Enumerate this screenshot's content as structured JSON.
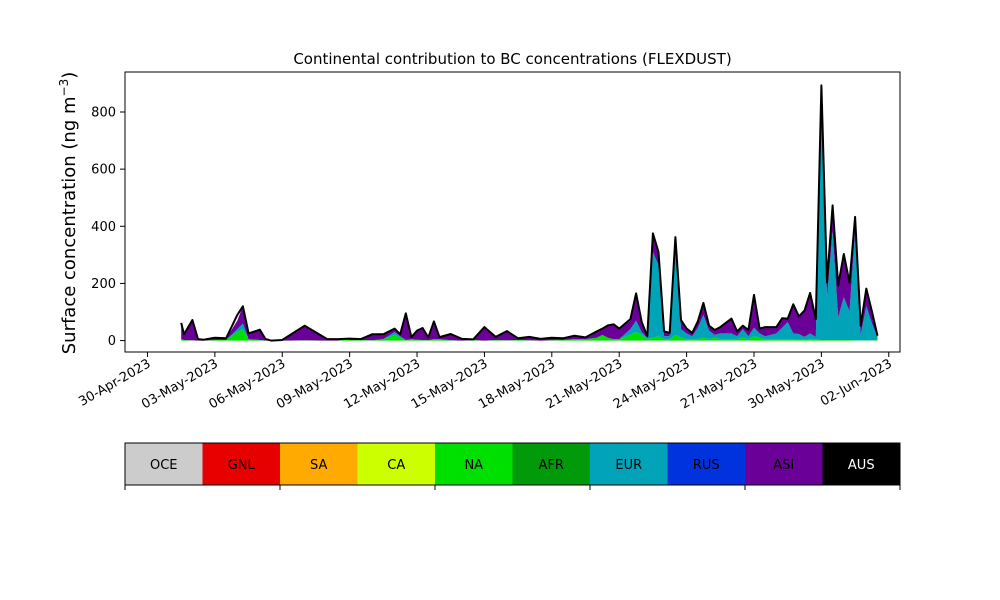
{
  "chart_data": {
    "type": "area",
    "stacked": true,
    "title": "Continental contribution to BC concentrations (FLEXDUST)",
    "ylabel": "Surface concentration (ng m",
    "ylabel_unit_sup": "−3",
    "ylabel_close": ")",
    "xlabel": "",
    "ylim": [
      -40,
      940
    ],
    "y_ticks": [
      0,
      200,
      400,
      600,
      800
    ],
    "x_range": [
      "2023-04-29",
      "2023-06-02 12:00"
    ],
    "x_ticks": [
      "30-Apr-2023",
      "03-May-2023",
      "06-May-2023",
      "09-May-2023",
      "12-May-2023",
      "15-May-2023",
      "18-May-2023",
      "21-May-2023",
      "24-May-2023",
      "27-May-2023",
      "30-May-2023",
      "02-Jun-2023"
    ],
    "grid": false,
    "legend": {
      "placement": "bottom colorbar",
      "entries": [
        {
          "name": "OCE",
          "color": "#cccccc",
          "text_color": "#000000"
        },
        {
          "name": "GNL",
          "color": "#e60000",
          "text_color": "#000000"
        },
        {
          "name": "SA",
          "color": "#ffaa00",
          "text_color": "#000000"
        },
        {
          "name": "CA",
          "color": "#ccff00",
          "text_color": "#000000"
        },
        {
          "name": "NA",
          "color": "#00e000",
          "text_color": "#000000"
        },
        {
          "name": "AFR",
          "color": "#009a0a",
          "text_color": "#000000"
        },
        {
          "name": "EUR",
          "color": "#00a3b8",
          "text_color": "#000000"
        },
        {
          "name": "RUS",
          "color": "#0033dd",
          "text_color": "#000000"
        },
        {
          "name": "ASI",
          "color": "#6a0098",
          "text_color": "#000000"
        },
        {
          "name": "AUS",
          "color": "#000000",
          "text_color": "#ffffff"
        }
      ]
    },
    "x": [
      "2023-05-01 12:00",
      "2023-05-01 15:00",
      "2023-05-02 00:00",
      "2023-05-02 06:00",
      "2023-05-02 12:00",
      "2023-05-03 00:00",
      "2023-05-03 12:00",
      "2023-05-04 00:00",
      "2023-05-04 06:00",
      "2023-05-04 12:00",
      "2023-05-05 00:00",
      "2023-05-05 06:00",
      "2023-05-05 12:00",
      "2023-05-06 00:00",
      "2023-05-07 00:00",
      "2023-05-08 00:00",
      "2023-05-08 12:00",
      "2023-05-08 18:00",
      "2023-05-09 00:00",
      "2023-05-09 12:00",
      "2023-05-10 00:00",
      "2023-05-10 12:00",
      "2023-05-11 00:00",
      "2023-05-11 06:00",
      "2023-05-11 12:00",
      "2023-05-11 18:00",
      "2023-05-12 00:00",
      "2023-05-12 06:00",
      "2023-05-12 12:00",
      "2023-05-12 18:00",
      "2023-05-13 00:00",
      "2023-05-13 12:00",
      "2023-05-14 00:00",
      "2023-05-14 12:00",
      "2023-05-15 00:00",
      "2023-05-15 12:00",
      "2023-05-16 00:00",
      "2023-05-16 12:00",
      "2023-05-17 00:00",
      "2023-05-17 12:00",
      "2023-05-18 00:00",
      "2023-05-18 12:00",
      "2023-05-19 00:00",
      "2023-05-19 12:00",
      "2023-05-20 00:00",
      "2023-05-20 06:00",
      "2023-05-20 12:00",
      "2023-05-20 18:00",
      "2023-05-21 00:00",
      "2023-05-21 12:00",
      "2023-05-21 18:00",
      "2023-05-22 00:00",
      "2023-05-22 06:00",
      "2023-05-22 12:00",
      "2023-05-22 18:00",
      "2023-05-23 00:00",
      "2023-05-23 06:00",
      "2023-05-23 12:00",
      "2023-05-23 18:00",
      "2023-05-24 00:00",
      "2023-05-24 06:00",
      "2023-05-24 12:00",
      "2023-05-24 18:00",
      "2023-05-25 00:00",
      "2023-05-25 06:00",
      "2023-05-25 12:00",
      "2023-05-26 00:00",
      "2023-05-26 06:00",
      "2023-05-26 12:00",
      "2023-05-26 18:00",
      "2023-05-27 00:00",
      "2023-05-27 06:00",
      "2023-05-27 12:00",
      "2023-05-28 00:00",
      "2023-05-28 06:00",
      "2023-05-28 12:00",
      "2023-05-28 18:00",
      "2023-05-29 00:00",
      "2023-05-29 06:00",
      "2023-05-29 12:00",
      "2023-05-29 18:00",
      "2023-05-30 00:00",
      "2023-05-30 06:00",
      "2023-05-30 12:00",
      "2023-05-30 18:00",
      "2023-05-31 00:00",
      "2023-05-31 06:00",
      "2023-05-31 12:00",
      "2023-05-31 18:00",
      "2023-06-01 00:00",
      "2023-06-01 06:00",
      "2023-06-01 12:00"
    ],
    "series": [
      {
        "name": "NA",
        "values": [
          5,
          2,
          1,
          0,
          0,
          2,
          2,
          30,
          40,
          5,
          2,
          0,
          0,
          0,
          1,
          0,
          0,
          5,
          2,
          2,
          1,
          5,
          20,
          10,
          2,
          5,
          3,
          2,
          1,
          5,
          5,
          1,
          0,
          2,
          0,
          2,
          1,
          2,
          1,
          0,
          1,
          2,
          5,
          5,
          10,
          20,
          10,
          5,
          5,
          20,
          30,
          20,
          5,
          10,
          15,
          5,
          5,
          20,
          10,
          5,
          5,
          5,
          10,
          5,
          10,
          5,
          5,
          5,
          10,
          5,
          15,
          10,
          5,
          5,
          5,
          5,
          5,
          3,
          3,
          5,
          3,
          2,
          2,
          2,
          2,
          2,
          2,
          1,
          1,
          1,
          1,
          1
        ]
      },
      {
        "name": "EUR",
        "values": [
          0,
          0,
          0,
          0,
          0,
          0,
          0,
          10,
          20,
          0,
          0,
          0,
          0,
          0,
          0,
          0,
          0,
          0,
          0,
          0,
          0,
          0,
          10,
          5,
          0,
          0,
          0,
          0,
          0,
          0,
          0,
          0,
          0,
          0,
          0,
          0,
          0,
          0,
          0,
          0,
          0,
          0,
          0,
          0,
          0,
          0,
          0,
          0,
          0,
          20,
          40,
          10,
          5,
          300,
          250,
          10,
          10,
          300,
          30,
          20,
          10,
          40,
          80,
          30,
          10,
          20,
          20,
          10,
          30,
          10,
          30,
          15,
          10,
          20,
          40,
          60,
          20,
          20,
          10,
          20,
          10,
          820,
          150,
          380,
          80,
          150,
          100,
          380,
          20,
          120,
          60,
          10
        ]
      },
      {
        "name": "ASI",
        "values": [
          55,
          20,
          70,
          5,
          2,
          8,
          5,
          30,
          60,
          20,
          35,
          5,
          0,
          2,
          50,
          5,
          5,
          1,
          5,
          3,
          20,
          15,
          10,
          5,
          90,
          5,
          30,
          40,
          10,
          60,
          5,
          20,
          5,
          2,
          45,
          10,
          30,
          5,
          10,
          5,
          8,
          5,
          10,
          5,
          20,
          20,
          40,
          50,
          35,
          30,
          90,
          30,
          5,
          65,
          40,
          15,
          10,
          40,
          30,
          15,
          10,
          20,
          40,
          15,
          15,
          20,
          50,
          15,
          10,
          20,
          110,
          15,
          30,
          20,
          30,
          10,
          100,
          60,
          90,
          140,
          60,
          70,
          50,
          90,
          110,
          150,
          100,
          50,
          30,
          60,
          40,
          5
        ]
      }
    ],
    "total": [
      62,
      22,
      72,
      5,
      3,
      10,
      8,
      90,
      120,
      25,
      38,
      6,
      0,
      2,
      52,
      5,
      5,
      6,
      7,
      5,
      22,
      22,
      42,
      22,
      95,
      12,
      35,
      44,
      11,
      67,
      12,
      23,
      6,
      4,
      47,
      13,
      33,
      8,
      13,
      6,
      10,
      8,
      17,
      11,
      32,
      42,
      53,
      57,
      42,
      75,
      165,
      65,
      15,
      375,
      310,
      32,
      27,
      362,
      72,
      42,
      27,
      67,
      132,
      52,
      37,
      47,
      77,
      32,
      52,
      37,
      160,
      42,
      47,
      47,
      78,
      77,
      127,
      85,
      105,
      167,
      75,
      893,
      203,
      473,
      193,
      303,
      203,
      433,
      52,
      182,
      102,
      17
    ]
  }
}
